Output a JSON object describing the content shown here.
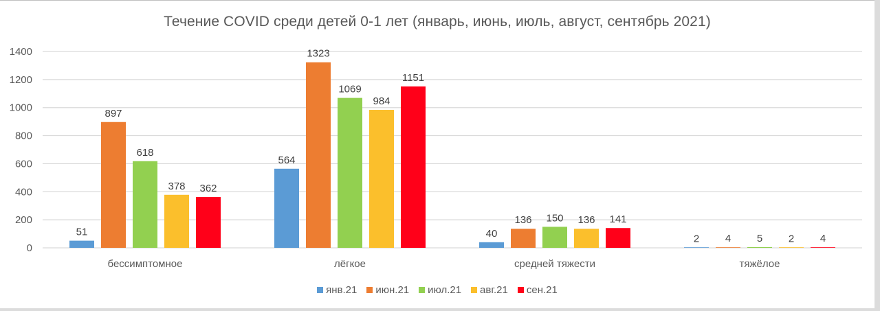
{
  "chart_data": {
    "type": "bar",
    "title": "Течение COVID среди детей 0-1 лет (январь, июнь, июль, август, сентябрь 2021)",
    "xlabel": "",
    "ylabel": "",
    "ylim": [
      0,
      1400
    ],
    "yticks": [
      0,
      200,
      400,
      600,
      800,
      1000,
      1200,
      1400
    ],
    "grid": true,
    "legend_position": "bottom",
    "categories": [
      "бессимптомное",
      "лёгкое",
      "средней тяжести",
      "тяжёлое"
    ],
    "series": [
      {
        "name": "янв.21",
        "color": "#5b9bd5",
        "values": [
          51,
          564,
          40,
          2
        ]
      },
      {
        "name": "июн.21",
        "color": "#ed7d31",
        "values": [
          897,
          1323,
          136,
          4
        ]
      },
      {
        "name": "июл.21",
        "color": "#92d050",
        "values": [
          618,
          1069,
          150,
          5
        ]
      },
      {
        "name": "авг.21",
        "color": "#fbbf2c",
        "values": [
          378,
          984,
          136,
          2
        ]
      },
      {
        "name": "сен.21",
        "color": "#ff0019",
        "values": [
          362,
          1151,
          141,
          4
        ]
      }
    ]
  }
}
